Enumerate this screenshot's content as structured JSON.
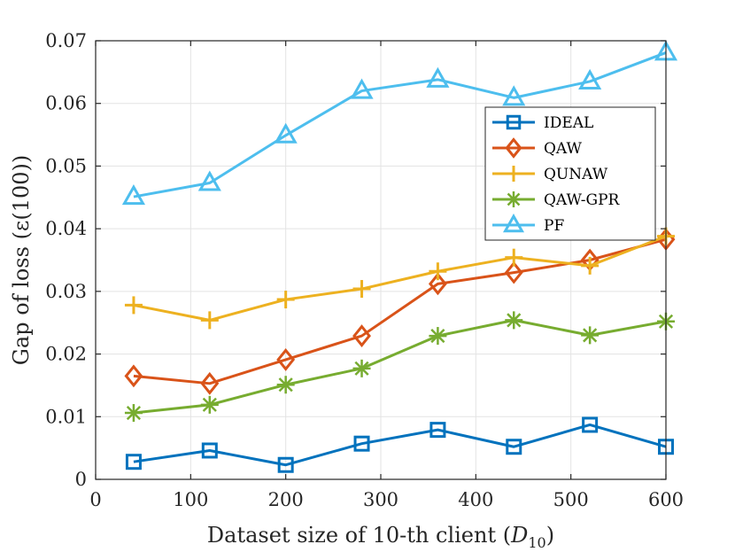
{
  "chart_data": {
    "type": "line",
    "xlabel": "Dataset size of 10-th client (D10)",
    "xlabel_parts": {
      "main": "Dataset size of 10-th client (",
      "var": "D",
      "sub": "10",
      "close": ")"
    },
    "ylabel": "Gap of loss (ε(100))",
    "xlim": [
      0,
      600
    ],
    "ylim": [
      0,
      0.07
    ],
    "xticks": [
      0,
      100,
      200,
      300,
      400,
      500,
      600
    ],
    "yticks": [
      0,
      0.01,
      0.02,
      0.03,
      0.04,
      0.05,
      0.06,
      0.07
    ],
    "xtick_labels": [
      "0",
      "100",
      "200",
      "300",
      "400",
      "500",
      "600"
    ],
    "ytick_labels": [
      "0",
      "0.01",
      "0.02",
      "0.03",
      "0.04",
      "0.05",
      "0.06",
      "0.07"
    ],
    "grid": true,
    "legend_position": "upper-right",
    "x": [
      40,
      120,
      200,
      280,
      360,
      440,
      520,
      600
    ],
    "series": [
      {
        "name": "IDEAL",
        "marker": "square",
        "color": "#0072BD",
        "values": [
          0.0028,
          0.0046,
          0.0023,
          0.0057,
          0.0079,
          0.0052,
          0.0087,
          0.0052
        ]
      },
      {
        "name": "QAW",
        "marker": "diamond",
        "color": "#D95319",
        "values": [
          0.0165,
          0.0153,
          0.0191,
          0.0229,
          0.0312,
          0.033,
          0.035,
          0.0383
        ]
      },
      {
        "name": "QUNAW",
        "marker": "plus",
        "color": "#EDB120",
        "values": [
          0.0278,
          0.0254,
          0.0287,
          0.0304,
          0.0332,
          0.0354,
          0.0341,
          0.0388
        ]
      },
      {
        "name": "QAW-GPR",
        "marker": "asterisk",
        "color": "#77AC30",
        "values": [
          0.0106,
          0.0119,
          0.0151,
          0.0177,
          0.0229,
          0.0254,
          0.023,
          0.0252
        ]
      },
      {
        "name": "PF",
        "marker": "triangle",
        "color": "#4DBEEE",
        "values": [
          0.0451,
          0.0473,
          0.0549,
          0.062,
          0.0638,
          0.0609,
          0.0635,
          0.0681
        ]
      }
    ]
  }
}
